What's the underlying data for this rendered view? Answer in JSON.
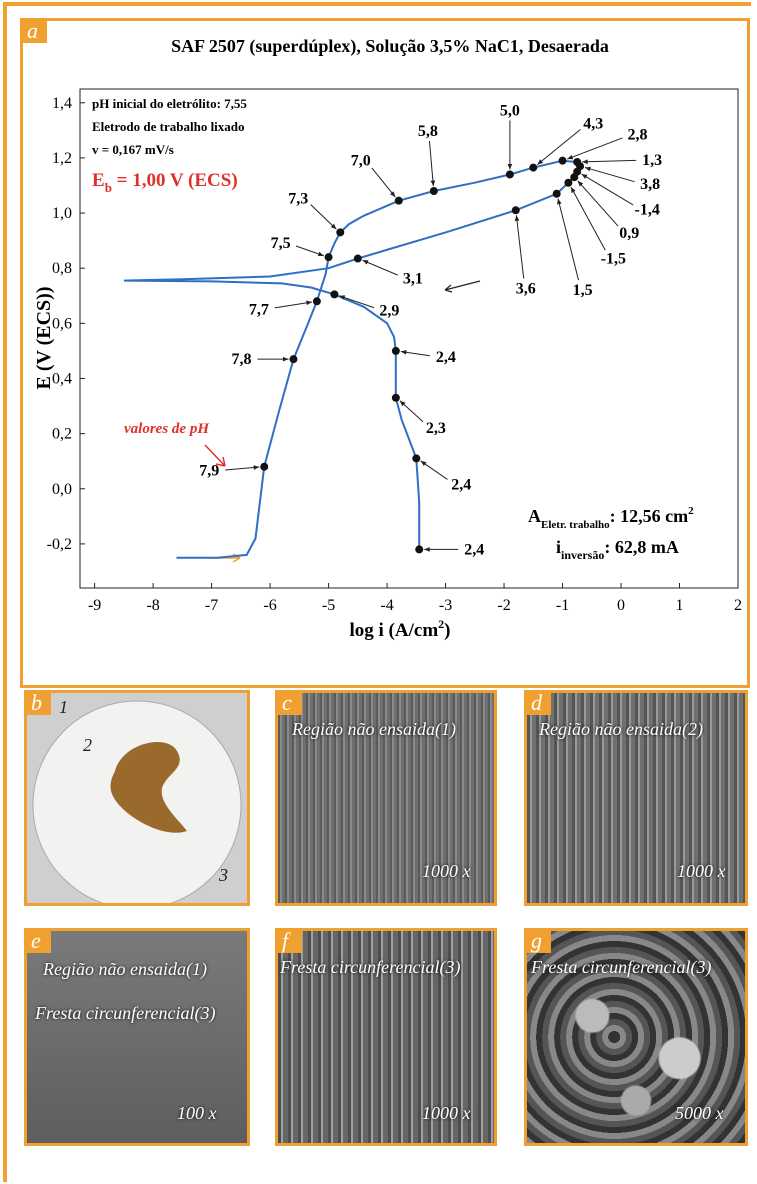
{
  "chart_data": {
    "type": "line",
    "panel": "a",
    "title": "SAF 2507 (superdúplex), Solução 3,5% NaC1, Desaerada",
    "x_label": [
      "log i (A/cm",
      "2",
      ")"
    ],
    "y_label": "E (V (ECS))",
    "xlim": [
      -9.25,
      2.0
    ],
    "ylim": [
      -0.36,
      1.45
    ],
    "xticks": [
      -9,
      -8,
      -7,
      -6,
      -5,
      -4,
      -3,
      -2,
      -1,
      0,
      1,
      2
    ],
    "yticks": [
      {
        "value": -0.2,
        "label": "-0,2"
      },
      {
        "value": 0,
        "label": "0,0"
      },
      {
        "value": 0.2,
        "label": "0,2"
      },
      {
        "value": 0.4,
        "label": "0,4"
      },
      {
        "value": 0.6,
        "label": "0,6"
      },
      {
        "value": 0.8,
        "label": "0,8"
      },
      {
        "value": 1.0,
        "label": "1,0"
      },
      {
        "value": 1.2,
        "label": "1,2"
      },
      {
        "value": 1.4,
        "label": "1,4"
      }
    ],
    "series": [
      {
        "color": "#2f6fc4",
        "x": [
          -7.6,
          -6.9,
          -6.4,
          -6.25,
          -6.1,
          -5.85,
          -5.6,
          -5.35,
          -5.2,
          -5.05,
          -5.0,
          -4.9,
          -4.8,
          -4.65,
          -4.4,
          -3.8,
          -3.2,
          -2.5,
          -1.9,
          -1.5,
          -1.0,
          -0.75,
          -0.7,
          -0.75,
          -0.8,
          -0.9,
          -1.1,
          -1.8,
          -3.0,
          -4.5,
          -5.0,
          -6.0,
          -7.5,
          -8.5,
          -7.0,
          -5.8,
          -5.3,
          -4.9,
          -4.4,
          -4.0,
          -3.88,
          -3.85,
          -3.85,
          -3.75,
          -3.5,
          -3.45,
          -3.45
        ],
        "values": [
          -0.25,
          -0.25,
          -0.24,
          -0.18,
          0.08,
          0.28,
          0.47,
          0.6,
          0.68,
          0.78,
          0.84,
          0.89,
          0.93,
          0.96,
          0.99,
          1.045,
          1.08,
          1.11,
          1.14,
          1.165,
          1.19,
          1.185,
          1.17,
          1.15,
          1.13,
          1.11,
          1.07,
          1.01,
          0.93,
          0.835,
          0.8,
          0.77,
          0.76,
          0.755,
          0.752,
          0.745,
          0.73,
          0.705,
          0.66,
          0.6,
          0.55,
          0.5,
          0.33,
          0.25,
          0.11,
          -0.05,
          -0.22
        ]
      }
    ],
    "points": [
      {
        "x": -6.1,
        "y": 0.08,
        "label": "7,9"
      },
      {
        "x": -5.6,
        "y": 0.47,
        "label": "7,8"
      },
      {
        "x": -5.2,
        "y": 0.68,
        "label": "7,7"
      },
      {
        "x": -4.9,
        "y": 0.705,
        "label": "2,9"
      },
      {
        "x": -5.0,
        "y": 0.84,
        "label": "7,5"
      },
      {
        "x": -4.8,
        "y": 0.93,
        "label": "7,3"
      },
      {
        "x": -4.5,
        "y": 0.835,
        "label": "3,1"
      },
      {
        "x": -3.8,
        "y": 1.045,
        "label": "7,0"
      },
      {
        "x": -3.2,
        "y": 1.08,
        "label": "5,8"
      },
      {
        "x": -1.9,
        "y": 1.14,
        "label": "5,0"
      },
      {
        "x": -1.5,
        "y": 1.165,
        "label": "4,3"
      },
      {
        "x": -1.0,
        "y": 1.19,
        "label": "2,8"
      },
      {
        "x": -0.75,
        "y": 1.185,
        "label": "1,3"
      },
      {
        "x": -0.7,
        "y": 1.17,
        "label": "3,8"
      },
      {
        "x": -0.75,
        "y": 1.15,
        "label": "-1,4"
      },
      {
        "x": -0.8,
        "y": 1.13,
        "label": "0,9"
      },
      {
        "x": -0.9,
        "y": 1.11,
        "label": "-1,5"
      },
      {
        "x": -1.1,
        "y": 1.07,
        "label": "1,5"
      },
      {
        "x": -1.8,
        "y": 1.01,
        "label": "3,6"
      },
      {
        "x": -3.85,
        "y": 0.5,
        "label": "2,4"
      },
      {
        "x": -3.85,
        "y": 0.33,
        "label": "2,3"
      },
      {
        "x": -3.5,
        "y": 0.11,
        "label": "2,4"
      },
      {
        "x": -3.45,
        "y": -0.22,
        "label": "2,4"
      }
    ],
    "notes": [
      "pH inicial do eletrólito: 7,55",
      "Eletrodo de trabalho lixado",
      "v = 0,167 mV/s"
    ],
    "eb": [
      "E",
      "b",
      " = 1,00 V (ECS)"
    ],
    "ph_note": "valores de pH",
    "area": [
      "A",
      "Eletr. trabalho",
      ": 12,56 cm",
      "2"
    ],
    "current": [
      "i",
      "inversão",
      ": 62,8 mA"
    ]
  },
  "panels": [
    {
      "letter": "b",
      "texts": [
        "1",
        "2",
        "3"
      ]
    },
    {
      "letter": "c",
      "texts": [
        "Região não ensaida(1)",
        "1000 x"
      ]
    },
    {
      "letter": "d",
      "texts": [
        "Região não ensaida(2)",
        "1000 x"
      ]
    },
    {
      "letter": "e",
      "texts": [
        "Região não ensaida(1)",
        "Fresta circunferencial(3)",
        "100 x"
      ]
    },
    {
      "letter": "f",
      "texts": [
        "Fresta circunferencial(3)",
        "1000 x"
      ]
    },
    {
      "letter": "g",
      "texts": [
        "Fresta circunferencial(3)",
        "5000 x"
      ]
    }
  ]
}
